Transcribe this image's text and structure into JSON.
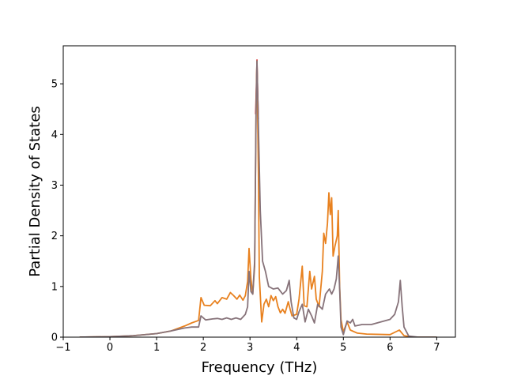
{
  "chart_data": {
    "type": "line",
    "title": "",
    "xlabel": "Frequency (THz)",
    "ylabel": "Partial Density of States",
    "xlim": [
      -1.0,
      7.4
    ],
    "ylim": [
      0,
      5.75
    ],
    "xticks": [
      -1,
      0,
      1,
      2,
      3,
      4,
      5,
      6,
      7
    ],
    "yticks": [
      0,
      1,
      2,
      3,
      4,
      5
    ],
    "grid": false,
    "legend": "none",
    "series": [
      {
        "color": "#e8811f",
        "points": [
          [
            -0.65,
            0.0
          ],
          [
            0.0,
            0.01
          ],
          [
            0.5,
            0.03
          ],
          [
            1.0,
            0.07
          ],
          [
            1.3,
            0.12
          ],
          [
            1.6,
            0.22
          ],
          [
            1.75,
            0.28
          ],
          [
            1.9,
            0.33
          ],
          [
            1.95,
            0.78
          ],
          [
            2.02,
            0.63
          ],
          [
            2.15,
            0.62
          ],
          [
            2.25,
            0.72
          ],
          [
            2.3,
            0.66
          ],
          [
            2.4,
            0.78
          ],
          [
            2.5,
            0.75
          ],
          [
            2.58,
            0.88
          ],
          [
            2.65,
            0.82
          ],
          [
            2.72,
            0.75
          ],
          [
            2.78,
            0.83
          ],
          [
            2.85,
            0.73
          ],
          [
            2.9,
            0.82
          ],
          [
            2.95,
            1.1
          ],
          [
            2.98,
            1.75
          ],
          [
            3.02,
            1.15
          ],
          [
            3.06,
            0.85
          ],
          [
            3.1,
            1.4
          ],
          [
            3.13,
            4.5
          ],
          [
            3.15,
            5.45
          ],
          [
            3.18,
            3.3
          ],
          [
            3.2,
            1.2
          ],
          [
            3.25,
            0.3
          ],
          [
            3.3,
            0.65
          ],
          [
            3.35,
            0.75
          ],
          [
            3.4,
            0.6
          ],
          [
            3.45,
            0.82
          ],
          [
            3.5,
            0.72
          ],
          [
            3.55,
            0.8
          ],
          [
            3.6,
            0.6
          ],
          [
            3.65,
            0.48
          ],
          [
            3.7,
            0.55
          ],
          [
            3.75,
            0.47
          ],
          [
            3.82,
            0.7
          ],
          [
            3.86,
            0.55
          ],
          [
            3.9,
            0.42
          ],
          [
            4.0,
            0.45
          ],
          [
            4.05,
            0.75
          ],
          [
            4.12,
            1.4
          ],
          [
            4.16,
            0.62
          ],
          [
            4.22,
            0.6
          ],
          [
            4.28,
            1.3
          ],
          [
            4.32,
            0.95
          ],
          [
            4.38,
            1.2
          ],
          [
            4.42,
            0.75
          ],
          [
            4.48,
            0.6
          ],
          [
            4.55,
            1.3
          ],
          [
            4.58,
            2.05
          ],
          [
            4.62,
            1.85
          ],
          [
            4.66,
            2.25
          ],
          [
            4.69,
            2.85
          ],
          [
            4.72,
            2.42
          ],
          [
            4.75,
            2.75
          ],
          [
            4.78,
            1.6
          ],
          [
            4.82,
            1.8
          ],
          [
            4.87,
            2.0
          ],
          [
            4.89,
            2.5
          ],
          [
            4.92,
            1.0
          ],
          [
            4.95,
            0.35
          ],
          [
            5.0,
            0.1
          ],
          [
            5.08,
            0.3
          ],
          [
            5.15,
            0.14
          ],
          [
            5.3,
            0.08
          ],
          [
            5.5,
            0.06
          ],
          [
            6.0,
            0.05
          ],
          [
            6.2,
            0.14
          ],
          [
            6.3,
            0.03
          ],
          [
            6.5,
            0.0
          ],
          [
            7.0,
            0.0
          ]
        ]
      },
      {
        "color": "#87737a",
        "points": [
          [
            -0.65,
            0.0
          ],
          [
            0.0,
            0.01
          ],
          [
            0.5,
            0.03
          ],
          [
            1.0,
            0.07
          ],
          [
            1.3,
            0.12
          ],
          [
            1.6,
            0.18
          ],
          [
            1.75,
            0.2
          ],
          [
            1.9,
            0.2
          ],
          [
            1.95,
            0.42
          ],
          [
            2.05,
            0.34
          ],
          [
            2.2,
            0.36
          ],
          [
            2.3,
            0.37
          ],
          [
            2.4,
            0.35
          ],
          [
            2.5,
            0.38
          ],
          [
            2.6,
            0.35
          ],
          [
            2.7,
            0.38
          ],
          [
            2.8,
            0.35
          ],
          [
            2.9,
            0.45
          ],
          [
            2.95,
            0.6
          ],
          [
            2.98,
            1.3
          ],
          [
            3.02,
            0.9
          ],
          [
            3.06,
            0.85
          ],
          [
            3.1,
            1.5
          ],
          [
            3.13,
            4.5
          ],
          [
            3.15,
            5.45
          ],
          [
            3.18,
            4.2
          ],
          [
            3.22,
            2.5
          ],
          [
            3.27,
            1.5
          ],
          [
            3.33,
            1.3
          ],
          [
            3.4,
            1.0
          ],
          [
            3.5,
            0.95
          ],
          [
            3.6,
            0.97
          ],
          [
            3.7,
            0.85
          ],
          [
            3.78,
            0.92
          ],
          [
            3.84,
            1.12
          ],
          [
            3.88,
            0.7
          ],
          [
            3.94,
            0.38
          ],
          [
            4.0,
            0.35
          ],
          [
            4.05,
            0.5
          ],
          [
            4.12,
            0.65
          ],
          [
            4.18,
            0.3
          ],
          [
            4.25,
            0.55
          ],
          [
            4.32,
            0.42
          ],
          [
            4.38,
            0.28
          ],
          [
            4.45,
            0.65
          ],
          [
            4.55,
            0.55
          ],
          [
            4.62,
            0.85
          ],
          [
            4.7,
            0.95
          ],
          [
            4.75,
            0.85
          ],
          [
            4.8,
            0.95
          ],
          [
            4.85,
            1.15
          ],
          [
            4.89,
            1.6
          ],
          [
            4.92,
            0.95
          ],
          [
            4.95,
            0.2
          ],
          [
            5.0,
            0.05
          ],
          [
            5.08,
            0.32
          ],
          [
            5.15,
            0.28
          ],
          [
            5.2,
            0.35
          ],
          [
            5.25,
            0.22
          ],
          [
            5.4,
            0.25
          ],
          [
            5.6,
            0.25
          ],
          [
            5.8,
            0.3
          ],
          [
            6.0,
            0.35
          ],
          [
            6.1,
            0.45
          ],
          [
            6.18,
            0.7
          ],
          [
            6.22,
            1.12
          ],
          [
            6.26,
            0.6
          ],
          [
            6.3,
            0.2
          ],
          [
            6.4,
            0.02
          ],
          [
            6.6,
            0.0
          ],
          [
            7.0,
            0.0
          ]
        ]
      }
    ],
    "peak_marker_color": "#d62728"
  }
}
